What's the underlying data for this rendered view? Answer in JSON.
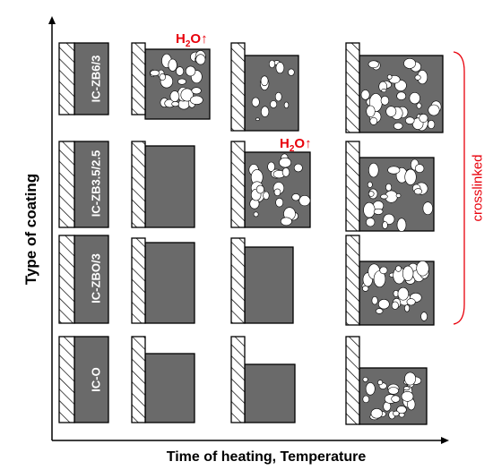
{
  "axes": {
    "y_label": "Type of coating",
    "x_label": "Time of heating, Temperature"
  },
  "rows": [
    {
      "label": "IC-ZB6/3"
    },
    {
      "label": "IC-ZB3.5/2.5"
    },
    {
      "label": "IC-ZBO/3"
    },
    {
      "label": "IC-O"
    }
  ],
  "annotations": {
    "water_release_1": {
      "main": "H",
      "sub": "2",
      "rest": "O↑"
    },
    "water_release_2": {
      "main": "H",
      "sub": "2",
      "rest": "O↑"
    },
    "bracket_label": "crosslinked"
  },
  "colors": {
    "coating": "#6a6a6a",
    "hatch": "#ffffff",
    "annotation": "#e8000b",
    "outline": "#000000",
    "bubble": "#ffffff"
  }
}
